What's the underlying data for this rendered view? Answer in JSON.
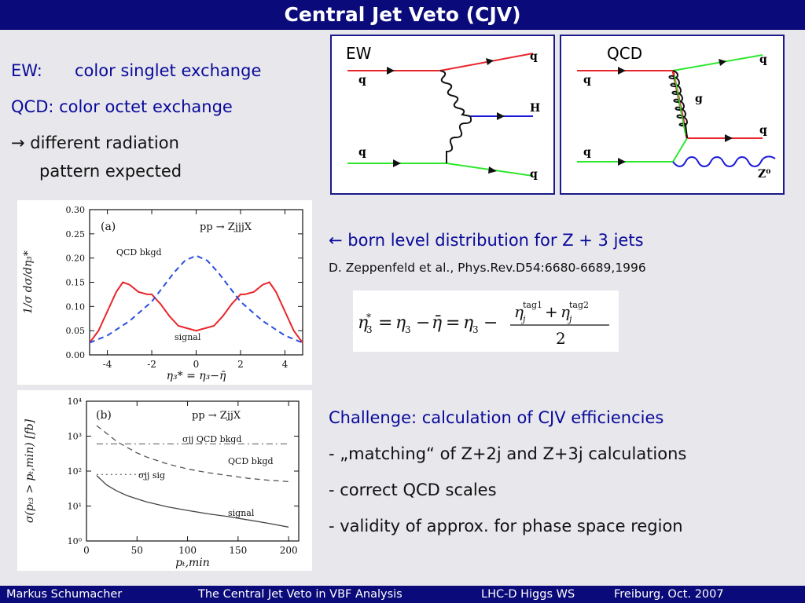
{
  "slide": {
    "title": "Central Jet Veto (CJV)",
    "left_text": {
      "ew_label": "EW:",
      "ew_text": "color singlet exchange",
      "qcd_text": "QCD: color octet exchange",
      "arrow_line1": "→ different radiation",
      "arrow_line2": "pattern expected"
    },
    "right_text": {
      "born_line": "← born level distribution for Z + 3 jets",
      "reference": "D. Zeppenfeld et al., Phys.Rev.D54:6680-6689,1996",
      "challenge_title": "Challenge: calculation of CJV efficiencies",
      "bullets": [
        "- „matching“ of Z+2j and Z+3j calculations",
        "- correct QCD scales",
        "- validity of approx. for phase space region"
      ]
    },
    "footer": {
      "author": "Markus  Schumacher",
      "talk": "The Central Jet Veto in VBF Analysis",
      "workshop": "LHC-D Higgs WS",
      "place_date": "Freiburg, Oct. 2007"
    }
  },
  "feynman": {
    "ew": {
      "title": "EW",
      "labels": {
        "q_in_top": "q",
        "q_in_bottom": "q",
        "q_out_top": "q",
        "q_out_bottom": "q",
        "higgs": "H"
      }
    },
    "qcd": {
      "title": "QCD",
      "labels": {
        "q_in_top": "q",
        "q_in_bottom": "q",
        "q_out_top": "q",
        "q_out_mid": "q",
        "gluon": "g",
        "z": "Z⁰"
      }
    },
    "colors": {
      "quark_top": "#e8262b",
      "quark_bottom": "#2ee82e",
      "higgs": "#1a1ad8",
      "boson": "#1a1ad8",
      "gluon": "#111111"
    }
  },
  "formula": {
    "eta_star": "η",
    "star": "*",
    "sub3": "3",
    "eq": "=",
    "eta": "η",
    "minus": "−",
    "eta_bar": "η̄",
    "plus": "+",
    "tag1": "tag1",
    "tag2": "tag2",
    "sub_j": "j",
    "denominator": "2"
  },
  "chart_data": [
    {
      "type": "line",
      "panel_label": "(a)",
      "process": "pp → ZjjjX",
      "ylabel": "1/σ  dσ/dη₃*",
      "xlabel": "η₃* = η₃−η̄",
      "xlim": [
        -4.8,
        4.8
      ],
      "ylim": [
        0.0,
        0.3
      ],
      "x_ticks": [
        "-4",
        "-2",
        "0",
        "2",
        "4"
      ],
      "y_ticks": [
        "0.00",
        "0.05",
        "0.10",
        "0.15",
        "0.20",
        "0.25",
        "0.30"
      ],
      "annotations": {
        "qcd": "QCD bkgd",
        "signal": "signal"
      },
      "series": [
        {
          "name": "signal",
          "style": "solid",
          "color": "#e8262b",
          "x": [
            -4.8,
            -4.4,
            -4.0,
            -3.6,
            -3.3,
            -3.0,
            -2.6,
            -2.2,
            -2.0,
            -1.6,
            -1.2,
            -0.8,
            -0.4,
            0.0,
            0.4,
            0.8,
            1.2,
            1.6,
            2.0,
            2.2,
            2.6,
            3.0,
            3.3,
            3.6,
            4.0,
            4.4,
            4.8
          ],
          "y": [
            0.025,
            0.05,
            0.09,
            0.13,
            0.15,
            0.145,
            0.13,
            0.125,
            0.125,
            0.105,
            0.08,
            0.06,
            0.055,
            0.05,
            0.055,
            0.06,
            0.08,
            0.105,
            0.125,
            0.125,
            0.13,
            0.145,
            0.15,
            0.13,
            0.09,
            0.05,
            0.025
          ]
        },
        {
          "name": "QCD bkgd",
          "style": "dashed",
          "color": "#2a4fe0",
          "x": [
            -4.8,
            -4.0,
            -3.0,
            -2.0,
            -1.5,
            -1.0,
            -0.5,
            0.0,
            0.5,
            1.0,
            1.5,
            2.0,
            3.0,
            4.0,
            4.8
          ],
          "y": [
            0.025,
            0.04,
            0.07,
            0.11,
            0.14,
            0.17,
            0.195,
            0.205,
            0.195,
            0.17,
            0.14,
            0.11,
            0.07,
            0.04,
            0.025
          ]
        }
      ]
    },
    {
      "type": "line",
      "panel_label": "(b)",
      "process": "pp → ZjjX",
      "ylabel": "σ(pₜ₃ > pₜ,min) [fb]",
      "xlabel": "pₜ,min",
      "xlim": [
        0,
        210
      ],
      "ylim": [
        1,
        10000
      ],
      "log_y": true,
      "x_ticks": [
        "0",
        "50",
        "100",
        "150",
        "200"
      ],
      "y_ticks": [
        "10⁰",
        "10¹",
        "10²",
        "10³",
        "10⁴"
      ],
      "annotations": {
        "sigma_jj_qcd": "σjj QCD bkgd",
        "qcd": "QCD bkgd",
        "sigma_jj_sig": "σjj sig",
        "signal": "signal"
      },
      "series": [
        {
          "name": "QCD bkgd",
          "style": "dashed",
          "color": "#555555",
          "x": [
            10,
            20,
            30,
            40,
            50,
            60,
            80,
            100,
            120,
            140,
            160,
            180,
            200
          ],
          "y": [
            2000,
            1200,
            700,
            480,
            330,
            250,
            160,
            115,
            90,
            75,
            62,
            55,
            50
          ]
        },
        {
          "name": "signal",
          "style": "solid",
          "color": "#444444",
          "x": [
            10,
            20,
            30,
            40,
            50,
            60,
            80,
            100,
            120,
            140,
            160,
            180,
            200
          ],
          "y": [
            75,
            40,
            27,
            20,
            16,
            13,
            9.5,
            7.5,
            6,
            5,
            4,
            3.2,
            2.5
          ]
        },
        {
          "name": "σjj QCD bkgd",
          "style": "dashdot",
          "color": "#777777",
          "x": [
            10,
            200
          ],
          "y": [
            600,
            600
          ]
        },
        {
          "name": "σjj sig",
          "style": "dotted",
          "color": "#777777",
          "x": [
            10,
            60
          ],
          "y": [
            80,
            80
          ]
        }
      ]
    }
  ]
}
